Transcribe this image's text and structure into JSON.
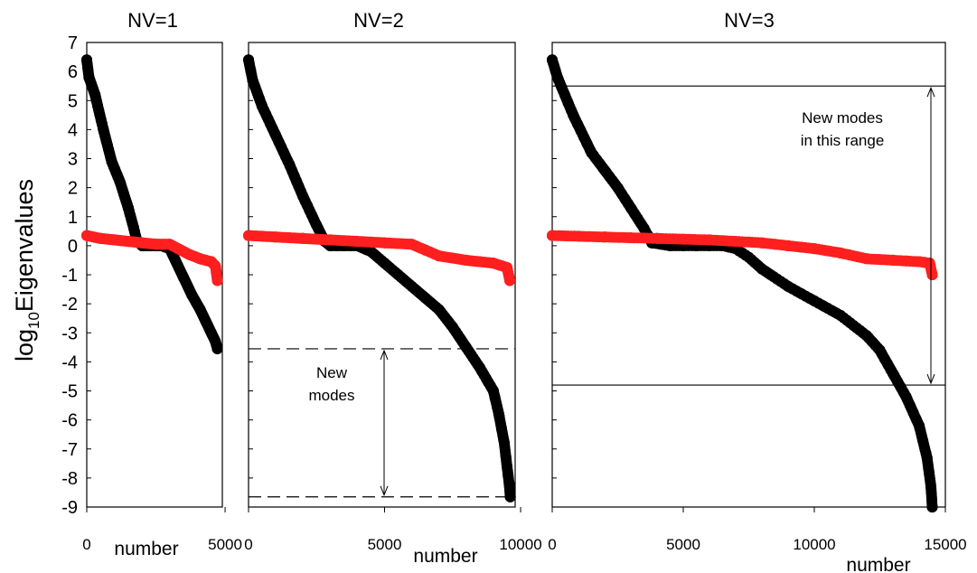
{
  "chart_data": {
    "type": "scatter",
    "ylabel_base": "log",
    "ylabel_sub": "10",
    "ylabel_rest": "Eigenvalues",
    "ylim": [
      -9,
      7
    ],
    "yticks": [
      "7",
      "6",
      "5",
      "4",
      "3",
      "2",
      "1",
      "0",
      "-1",
      "-2",
      "-3",
      "-4",
      "-5",
      "-6",
      "-7",
      "-8",
      "-9"
    ],
    "series_colors": {
      "black_series": "#000000",
      "red_series": "#ff1f1f"
    },
    "panels": [
      {
        "title": "NV=1",
        "xlabel": "number",
        "xlim": [
          0,
          4900
        ],
        "xticks": [
          "0",
          "5000"
        ],
        "black": [
          [
            0,
            6.4
          ],
          [
            80,
            5.8
          ],
          [
            300,
            5.2
          ],
          [
            600,
            4.0
          ],
          [
            900,
            2.9
          ],
          [
            1200,
            2.2
          ],
          [
            1500,
            1.3
          ],
          [
            1700,
            0.6
          ],
          [
            1800,
            0.2
          ],
          [
            2000,
            0.0
          ],
          [
            2300,
            0.0
          ],
          [
            2700,
            0.0
          ],
          [
            3000,
            -0.1
          ],
          [
            3200,
            -0.5
          ],
          [
            3500,
            -1.1
          ],
          [
            3800,
            -1.7
          ],
          [
            4100,
            -2.2
          ],
          [
            4300,
            -2.6
          ],
          [
            4500,
            -3.0
          ],
          [
            4650,
            -3.3
          ],
          [
            4720,
            -3.55
          ]
        ],
        "red": [
          [
            0,
            0.35
          ],
          [
            500,
            0.25
          ],
          [
            1000,
            0.2
          ],
          [
            1500,
            0.15
          ],
          [
            2000,
            0.1
          ],
          [
            2500,
            0.05
          ],
          [
            3000,
            0.05
          ],
          [
            3300,
            -0.1
          ],
          [
            3700,
            -0.3
          ],
          [
            4100,
            -0.45
          ],
          [
            4500,
            -0.55
          ],
          [
            4650,
            -0.7
          ],
          [
            4720,
            -1.2
          ]
        ]
      },
      {
        "title": "NV=2",
        "xlabel": "number",
        "xlim": [
          0,
          9800
        ],
        "xticks": [
          "0",
          "5000",
          "10000"
        ],
        "black": [
          [
            0,
            6.4
          ],
          [
            150,
            5.7
          ],
          [
            500,
            4.8
          ],
          [
            1000,
            3.8
          ],
          [
            1500,
            2.8
          ],
          [
            2000,
            1.7
          ],
          [
            2500,
            0.7
          ],
          [
            2800,
            0.15
          ],
          [
            3000,
            0.0
          ],
          [
            3500,
            0.0
          ],
          [
            4000,
            0.0
          ],
          [
            4500,
            -0.2
          ],
          [
            5000,
            -0.6
          ],
          [
            5500,
            -1.0
          ],
          [
            6000,
            -1.4
          ],
          [
            6500,
            -1.8
          ],
          [
            7000,
            -2.2
          ],
          [
            7500,
            -2.8
          ],
          [
            8000,
            -3.5
          ],
          [
            8500,
            -4.2
          ],
          [
            9000,
            -5.0
          ],
          [
            9200,
            -5.8
          ],
          [
            9400,
            -6.8
          ],
          [
            9500,
            -7.6
          ],
          [
            9580,
            -8.2
          ],
          [
            9620,
            -8.65
          ]
        ],
        "red": [
          [
            0,
            0.35
          ],
          [
            1000,
            0.3
          ],
          [
            2000,
            0.25
          ],
          [
            3000,
            0.2
          ],
          [
            4000,
            0.15
          ],
          [
            5000,
            0.1
          ],
          [
            6000,
            0.05
          ],
          [
            6500,
            -0.15
          ],
          [
            7000,
            -0.35
          ],
          [
            8000,
            -0.5
          ],
          [
            9000,
            -0.6
          ],
          [
            9500,
            -0.75
          ],
          [
            9600,
            -1.2
          ]
        ]
      },
      {
        "title": "NV=3",
        "xlabel": "number",
        "xlim": [
          0,
          15000
        ],
        "xticks": [
          "0",
          "5000",
          "10000",
          "15000"
        ],
        "black": [
          [
            0,
            6.4
          ],
          [
            200,
            5.8
          ],
          [
            800,
            4.5
          ],
          [
            1500,
            3.2
          ],
          [
            2000,
            2.6
          ],
          [
            2500,
            2.0
          ],
          [
            3000,
            1.3
          ],
          [
            3500,
            0.6
          ],
          [
            3800,
            0.1
          ],
          [
            4500,
            0.0
          ],
          [
            5500,
            0.0
          ],
          [
            6500,
            0.0
          ],
          [
            7000,
            -0.1
          ],
          [
            7500,
            -0.4
          ],
          [
            8000,
            -0.8
          ],
          [
            9000,
            -1.4
          ],
          [
            10000,
            -1.9
          ],
          [
            11000,
            -2.4
          ],
          [
            12000,
            -3.1
          ],
          [
            12500,
            -3.6
          ],
          [
            13000,
            -4.4
          ],
          [
            13500,
            -5.2
          ],
          [
            14000,
            -6.2
          ],
          [
            14300,
            -7.3
          ],
          [
            14450,
            -8.3
          ],
          [
            14500,
            -9.0
          ]
        ],
        "red": [
          [
            0,
            0.35
          ],
          [
            2000,
            0.3
          ],
          [
            4000,
            0.25
          ],
          [
            6000,
            0.2
          ],
          [
            8000,
            0.1
          ],
          [
            9000,
            0.0
          ],
          [
            10000,
            -0.1
          ],
          [
            11000,
            -0.25
          ],
          [
            12000,
            -0.45
          ],
          [
            13000,
            -0.5
          ],
          [
            14000,
            -0.55
          ],
          [
            14400,
            -0.6
          ],
          [
            14500,
            -1.0
          ]
        ]
      }
    ],
    "annotations": [
      {
        "panel": 1,
        "lines": [
          "New",
          "modes"
        ],
        "range": [
          -3.55,
          -8.65
        ],
        "line_style": "dashed"
      },
      {
        "panel": 2,
        "lines": [
          "New modes",
          "in this range"
        ],
        "range": [
          5.5,
          -4.8
        ],
        "line_style": "solid"
      }
    ]
  }
}
